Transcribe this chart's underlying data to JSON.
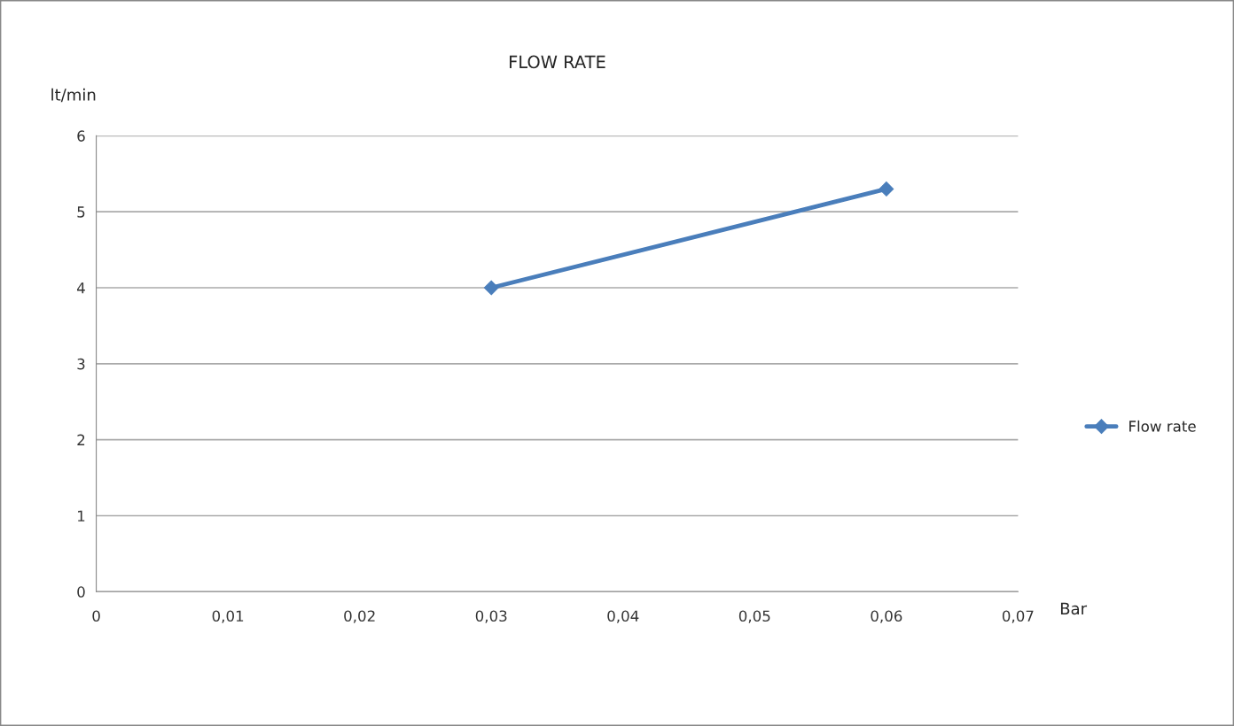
{
  "chart_data": {
    "type": "line",
    "title": "FLOW RATE",
    "xlabel": "Bar",
    "ylabel": "lt/min",
    "x": [
      0.03,
      0.06
    ],
    "series": [
      {
        "name": "Flow rate",
        "color": "#4a7ebb",
        "values": [
          4,
          5.3
        ]
      }
    ],
    "xlim": [
      0,
      0.07
    ],
    "xticks": [
      0,
      {
        "value": 0.01,
        "label": "0,01"
      },
      {
        "value": 0.02,
        "label": "0,02"
      },
      {
        "value": 0.03,
        "label": "0,03"
      },
      {
        "value": 0.04,
        "label": "0,04"
      },
      {
        "value": 0.05,
        "label": "0,05"
      },
      {
        "value": 0.06,
        "label": "0,06"
      },
      {
        "value": 0.07,
        "label": "0,07"
      }
    ],
    "ylim": [
      0,
      6
    ],
    "yticks": [
      0,
      1,
      2,
      3,
      4,
      5,
      6
    ],
    "grid": "y",
    "legend": "right",
    "marker": "diamond",
    "line_style": "solid"
  }
}
